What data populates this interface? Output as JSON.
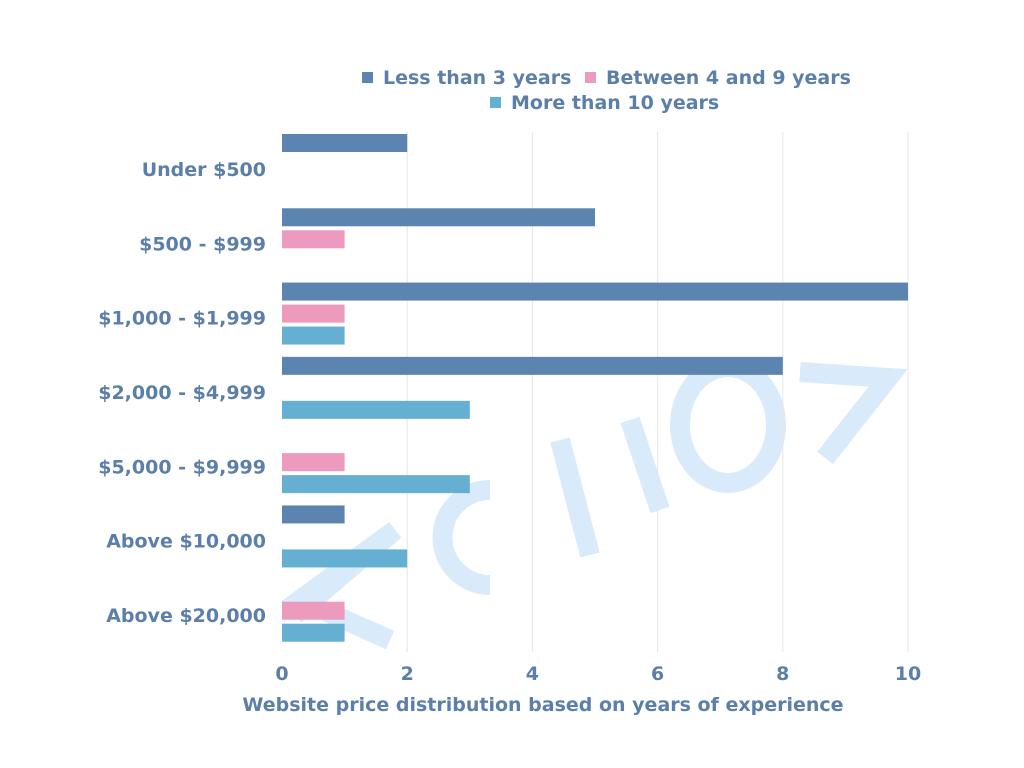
{
  "watermark_text": "ZCLIO",
  "chart_data": {
    "type": "bar",
    "orientation": "horizontal",
    "title": "",
    "xlabel": "Website price distribution based on years of experience",
    "ylabel": "",
    "categories": [
      "Under $500",
      "$500 - $999",
      "$1,000 - $1,999",
      "$2,000 - $4,999",
      "$5,000 - $9,999",
      "Above $10,000",
      "Above $20,000"
    ],
    "series": [
      {
        "name": "Less than 3 years",
        "color": "#5b84b1",
        "values": [
          2,
          5,
          10,
          8,
          0,
          1,
          0
        ]
      },
      {
        "name": "Between 4 and 9 years",
        "color": "#ec9abd",
        "values": [
          0,
          1,
          1,
          0,
          1,
          0,
          1
        ]
      },
      {
        "name": "More than 10 years",
        "color": "#65afd2",
        "values": [
          0,
          0,
          1,
          3,
          3,
          2,
          1
        ]
      }
    ],
    "xlim": [
      0,
      10
    ],
    "xticks": [
      "0",
      "2",
      "4",
      "6",
      "8",
      "10"
    ],
    "grid": true,
    "legend_position": "top"
  }
}
